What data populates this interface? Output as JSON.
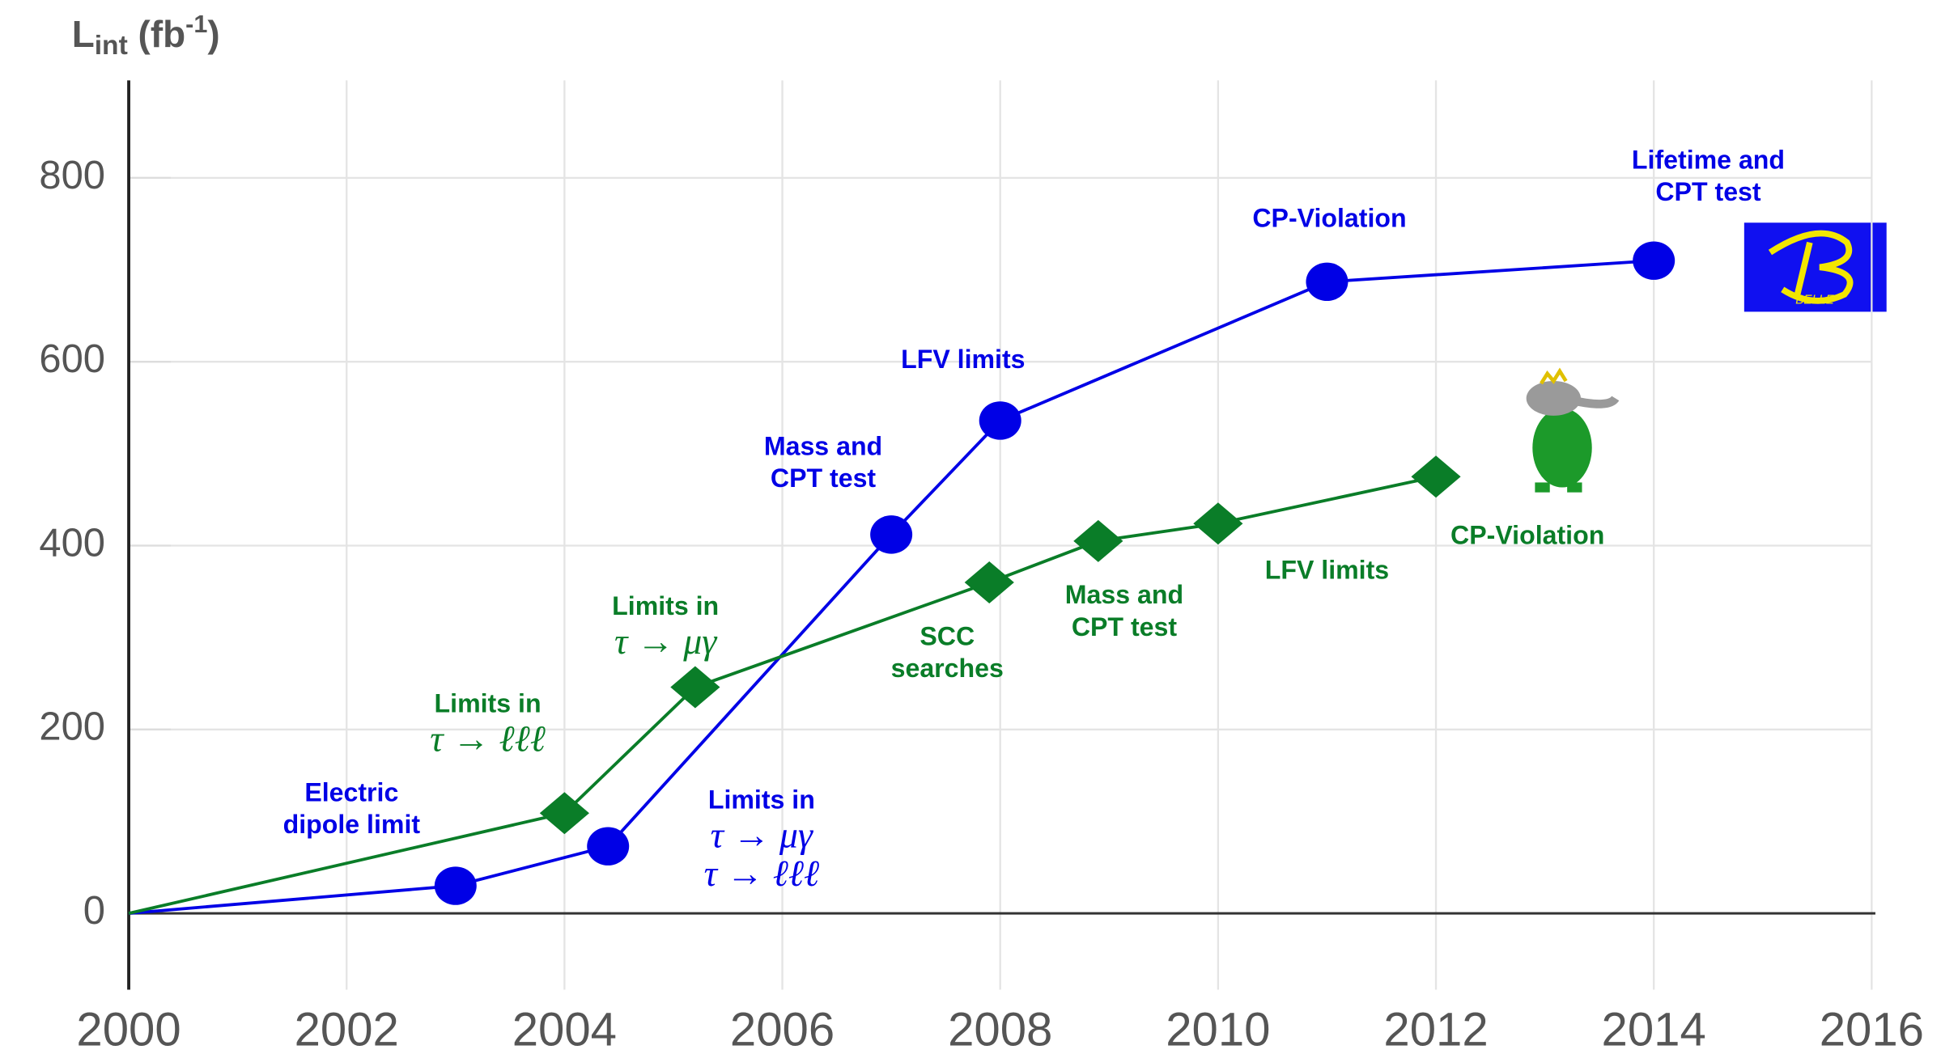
{
  "chart_data": {
    "type": "line",
    "ylabel": [
      "L",
      "int",
      " (fb",
      "-1",
      ")"
    ],
    "xlim": [
      2000,
      2016
    ],
    "xticks": [
      2000,
      2002,
      2004,
      2006,
      2008,
      2010,
      2012,
      2014,
      2016
    ],
    "ylim": [
      -83,
      906
    ],
    "yticks": [
      0,
      200,
      400,
      600,
      800
    ],
    "grid": true,
    "logo_text": "BELLE",
    "series": [
      {
        "color": "#0000e6",
        "marker": "circle",
        "x": [
          2000,
          2003,
          2004.4,
          2007,
          2008,
          2011,
          2014
        ],
        "values": [
          0,
          30,
          73,
          412,
          536,
          687,
          710
        ],
        "annotations": [
          null,
          {
            "lines": [
              "Electric",
              "dipole limit"
            ]
          },
          {
            "lines": [
              "Limits in"
            ],
            "math": [
              "τ → μγ",
              "τ → ℓℓℓ"
            ]
          },
          {
            "lines": [
              "Mass and",
              "CPT test"
            ]
          },
          {
            "lines": [
              "LFV limits"
            ]
          },
          {
            "lines": [
              "CP-Violation"
            ]
          },
          {
            "lines": [
              "Lifetime and",
              "CPT test"
            ]
          }
        ]
      },
      {
        "color": "#0a7d28",
        "marker": "diamond",
        "x": [
          2000,
          2004,
          2005.2,
          2007.9,
          2008.9,
          2010,
          2012
        ],
        "values": [
          0,
          109,
          246,
          360,
          405,
          424,
          475
        ],
        "annotations": [
          null,
          {
            "lines": [
              "Limits in"
            ],
            "math": [
              "τ → ℓℓℓ"
            ]
          },
          {
            "lines": [
              "Limits in"
            ],
            "math": [
              "τ → μγ"
            ]
          },
          {
            "lines": [
              "SCC",
              "searches"
            ]
          },
          {
            "lines": [
              "Mass and",
              "CPT test"
            ]
          },
          {
            "lines": [
              "LFV limits"
            ]
          },
          {
            "lines": [
              "CP-Violation"
            ]
          }
        ]
      }
    ]
  }
}
